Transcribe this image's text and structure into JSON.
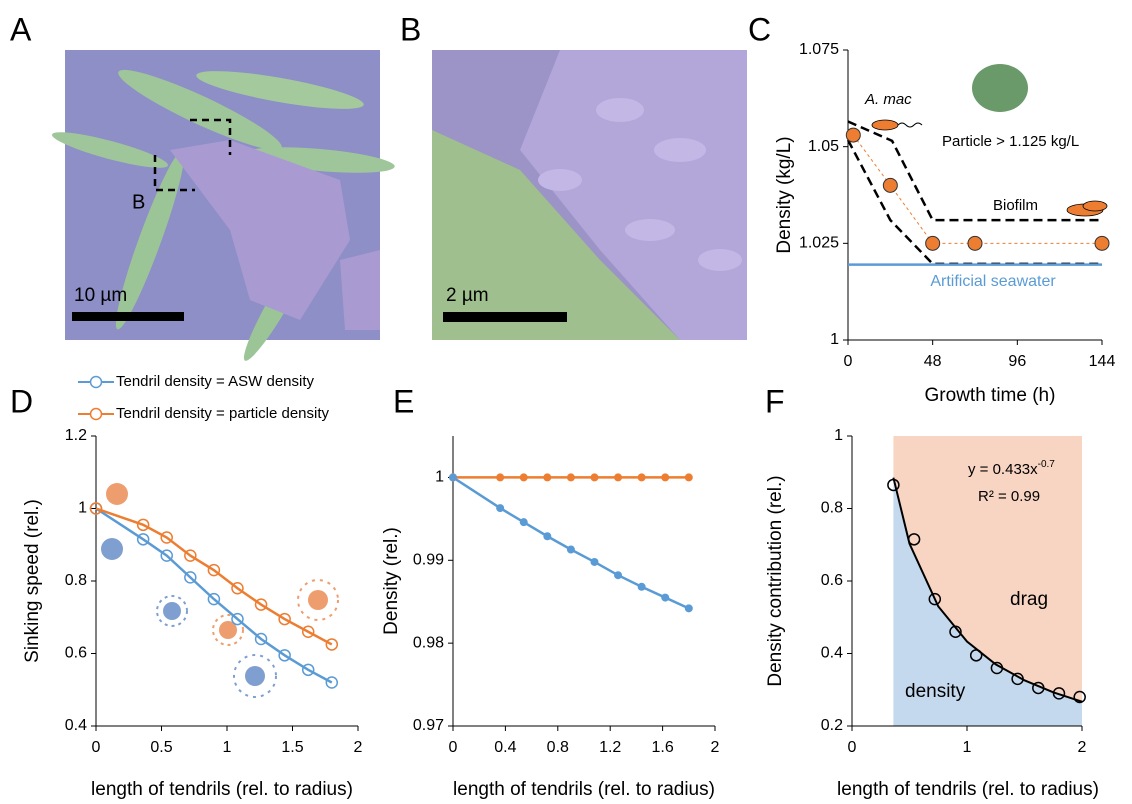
{
  "figure": {
    "panels": [
      {
        "label": "A",
        "scale_bar": "10 µm",
        "inset_label": "B"
      },
      {
        "label": "B",
        "scale_bar": "2 µm"
      },
      {
        "label": "C"
      },
      {
        "label": "D"
      },
      {
        "label": "E"
      },
      {
        "label": "F"
      }
    ]
  },
  "chart_data": [
    {
      "type": "line",
      "x_label": "Growth time (h)",
      "y_label": "Density (kg/L)",
      "xlim": [
        0,
        144
      ],
      "xticks": [
        0,
        48,
        96,
        144
      ],
      "ylim": [
        1,
        1.075
      ],
      "yticks": [
        1,
        1.025,
        1.05,
        1.075
      ],
      "annotations": {
        "organism": "A. mac",
        "particle": "Particle > 1.125 kg/L",
        "biofilm": "Biofilm"
      },
      "series": [
        {
          "color": "#000000",
          "line_style": "dashed",
          "x": [
            0,
            25,
            48,
            144
          ],
          "values": [
            1.0565,
            1.0515,
            1.031,
            1.031
          ]
        },
        {
          "color": "#000000",
          "line_style": "dashed",
          "x": [
            0,
            24,
            48,
            144
          ],
          "values": [
            1.0517,
            1.031,
            1.0197,
            1.0197
          ]
        },
        {
          "name": "Artificial seawater",
          "color": "#5b9bd5",
          "line_style": "solid",
          "x": [
            0,
            144
          ],
          "values": [
            1.0195,
            1.0195
          ]
        },
        {
          "color": "#ed7d31",
          "line_style": "dotted",
          "marker": "circle-filled",
          "x": [
            3,
            24,
            48,
            72,
            144
          ],
          "values": [
            1.053,
            1.04,
            1.025,
            1.025,
            1.025
          ]
        }
      ]
    },
    {
      "type": "line",
      "x_label": "length of tendrils (rel. to radius)",
      "y_label": "Sinking speed (rel.)",
      "xlim": [
        0,
        2
      ],
      "xticks": [
        0,
        0.5,
        1,
        1.5,
        2
      ],
      "ylim": [
        0.4,
        1.2
      ],
      "yticks": [
        0.4,
        0.6,
        0.8,
        1,
        1.2
      ],
      "legend": "top-left",
      "series": [
        {
          "name": "Tendril density = ASW density",
          "color": "#5b9bd5",
          "line_style": "solid",
          "marker": "circle-open",
          "x": [
            0,
            0.36,
            0.54,
            0.72,
            0.9,
            1.08,
            1.26,
            1.44,
            1.62,
            1.8
          ],
          "values": [
            1,
            0.915,
            0.87,
            0.81,
            0.75,
            0.695,
            0.64,
            0.595,
            0.555,
            0.52
          ]
        },
        {
          "name": "Tendril density = particle density",
          "color": "#ed7d31",
          "line_style": "solid",
          "marker": "circle-open",
          "x": [
            0,
            0.36,
            0.54,
            0.72,
            0.9,
            1.08,
            1.26,
            1.44,
            1.62,
            1.8
          ],
          "values": [
            1,
            0.955,
            0.92,
            0.87,
            0.83,
            0.78,
            0.735,
            0.695,
            0.66,
            0.625
          ]
        }
      ]
    },
    {
      "type": "line",
      "x_label": "length of tendrils (rel. to radius)",
      "y_label": "Density (rel.)",
      "xlim": [
        0,
        2
      ],
      "xticks": [
        0,
        0.4,
        0.8,
        1.2,
        1.6,
        2
      ],
      "ylim": [
        0.97,
        1.005
      ],
      "yticks": [
        0.97,
        0.98,
        0.99,
        1
      ],
      "series": [
        {
          "color": "#ed7d31",
          "line_style": "solid",
          "marker": "circle-filled",
          "x": [
            0,
            0.36,
            0.54,
            0.72,
            0.9,
            1.08,
            1.26,
            1.44,
            1.62,
            1.8
          ],
          "values": [
            1,
            1,
            1,
            1,
            1,
            1,
            1,
            1,
            1,
            1
          ]
        },
        {
          "color": "#5b9bd5",
          "line_style": "solid",
          "marker": "circle-filled",
          "x": [
            0,
            0.36,
            0.54,
            0.72,
            0.9,
            1.08,
            1.26,
            1.44,
            1.62,
            1.8
          ],
          "values": [
            1,
            0.9963,
            0.9946,
            0.9929,
            0.9913,
            0.9898,
            0.9882,
            0.9868,
            0.9855,
            0.9842
          ]
        }
      ]
    },
    {
      "type": "scatter",
      "x_label": "length of tendrils (rel. to radius)",
      "y_label": "Density contribution (rel.)",
      "xlim": [
        0,
        2
      ],
      "xticks": [
        0,
        1,
        2
      ],
      "ylim": [
        0.2,
        1
      ],
      "yticks": [
        0.2,
        0.4,
        0.6,
        0.8,
        1
      ],
      "annotations": {
        "equation": "y = 0.433x",
        "equation_exponent": "-0.7",
        "r_squared": "R² = 0.99",
        "drag": "drag",
        "density": "density"
      },
      "series": [
        {
          "color": "#000000",
          "line_style": "solid",
          "area_below_color": "#c5d9ee",
          "area_above_color": "#f8d5c3",
          "x": [
            0.36,
            0.5,
            0.75,
            1,
            1.25,
            1.5,
            1.75,
            2
          ],
          "values": [
            0.885,
            0.703,
            0.53,
            0.433,
            0.37,
            0.326,
            0.293,
            0.267
          ]
        },
        {
          "color": "#000000",
          "marker": "circle-open",
          "x": [
            0.36,
            0.54,
            0.72,
            0.9,
            1.08,
            1.26,
            1.44,
            1.62,
            1.8,
            1.98
          ],
          "values": [
            0.865,
            0.715,
            0.55,
            0.46,
            0.395,
            0.36,
            0.33,
            0.305,
            0.29,
            0.28
          ]
        }
      ]
    }
  ]
}
